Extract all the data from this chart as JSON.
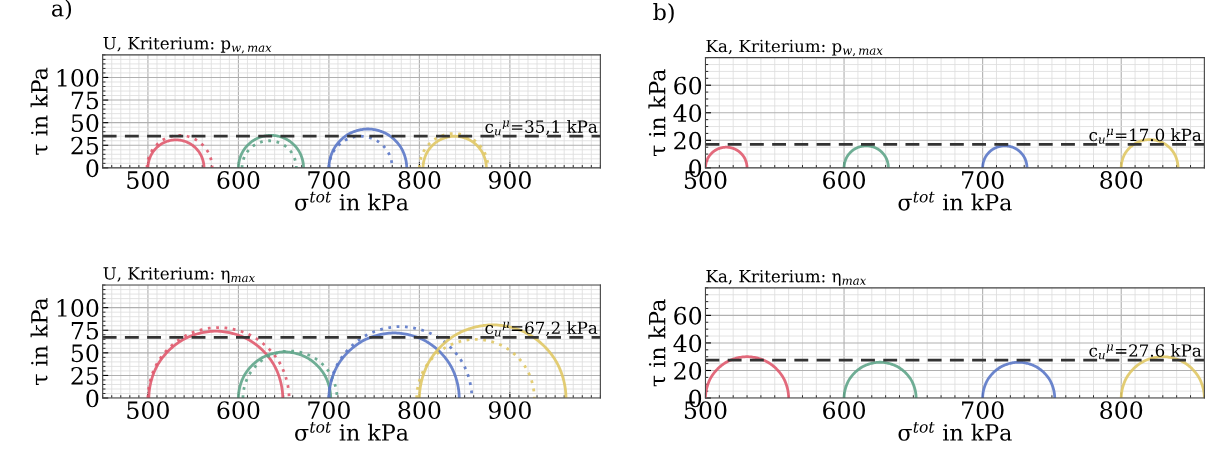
{
  "chart_data": [
    {
      "type": "line",
      "title": "U, Kriterium: p$_{w,max}$",
      "xlabel": "σ$^{tot}$ in kPa",
      "ylabel": "τ in kPa",
      "annotations": [
        "a)"
      ],
      "grid": true,
      "xlim": [
        450,
        1000
      ],
      "xticks": [
        500,
        600,
        700,
        800,
        900
      ],
      "ylim": [
        0,
        125
      ],
      "yticks": [
        0,
        25,
        50,
        75,
        100
      ],
      "ref_lines": [
        {
          "axis": "y",
          "value": 35.1,
          "label": "c$_{u}$$^{μ}$=35,1 kPa",
          "color": "#333333",
          "line_style": "dashed"
        }
      ],
      "series": [
        {
          "color": "#e05a6e",
          "line_style": "solid",
          "x": [
            500,
            504.2,
            515.5,
            531,
            546.5,
            557.8,
            562
          ],
          "values": [
            0,
            15.5,
            26.8,
            31,
            26.8,
            15.5,
            0
          ]
        },
        {
          "color": "#e05a6e",
          "line_style": "dotted",
          "x": [
            499,
            503.8,
            517,
            535,
            553,
            566.2,
            571
          ],
          "values": [
            0,
            18,
            31.2,
            36,
            31.2,
            18,
            0
          ]
        },
        {
          "color": "#5fa589",
          "line_style": "solid",
          "x": [
            600,
            604.8,
            618,
            636,
            654,
            667.2,
            672
          ],
          "values": [
            0,
            18,
            31.2,
            36,
            31.2,
            18,
            0
          ]
        },
        {
          "color": "#5fa589",
          "line_style": "dotted",
          "x": [
            604,
            608,
            619,
            634,
            649,
            660,
            664
          ],
          "values": [
            0,
            15,
            26,
            30,
            26,
            15,
            0
          ]
        },
        {
          "color": "#5b78c8",
          "line_style": "solid",
          "x": [
            700,
            705.8,
            721.5,
            743,
            764.5,
            780.2,
            786
          ],
          "values": [
            0,
            21.5,
            37.2,
            43,
            37.2,
            21.5,
            0
          ]
        },
        {
          "color": "#5b78c8",
          "line_style": "dotted",
          "x": [
            700,
            704.7,
            717.5,
            735,
            752.5,
            765.3,
            770
          ],
          "values": [
            0,
            17.5,
            30.3,
            35,
            30.3,
            17.5,
            0
          ]
        },
        {
          "color": "#e0c865",
          "line_style": "solid",
          "x": [
            804,
            808.7,
            821.5,
            839,
            856.5,
            869.3,
            874
          ],
          "values": [
            0,
            17.5,
            30.3,
            35,
            30.3,
            17.5,
            0
          ]
        },
        {
          "color": "#e0c865",
          "line_style": "dotted",
          "x": [
            800,
            805.1,
            819,
            838,
            857,
            870.9,
            876
          ],
          "values": [
            0,
            19,
            32.9,
            38,
            32.9,
            19,
            0
          ]
        }
      ]
    },
    {
      "type": "line",
      "title": "U, Kriterium: η$_{max}$",
      "xlabel": "σ$^{tot}$ in kPa",
      "ylabel": "τ in kPa",
      "grid": true,
      "xlim": [
        450,
        1000
      ],
      "xticks": [
        500,
        600,
        700,
        800,
        900
      ],
      "ylim": [
        0,
        125
      ],
      "yticks": [
        0,
        25,
        50,
        75,
        100
      ],
      "ref_lines": [
        {
          "axis": "y",
          "value": 67.2,
          "label": "c$_{u}$$^{μ}$=67,2 kPa",
          "color": "#333333",
          "line_style": "dashed"
        }
      ],
      "series": [
        {
          "color": "#e05a6e",
          "line_style": "solid",
          "x": [
            501,
            510.9,
            538,
            575,
            612,
            639.1,
            649
          ],
          "values": [
            0,
            37,
            64.1,
            74,
            64.1,
            37,
            0
          ]
        },
        {
          "color": "#e05a6e",
          "line_style": "dotted",
          "x": [
            500,
            510.5,
            539,
            578,
            617,
            645.5,
            656
          ],
          "values": [
            0,
            39,
            67.5,
            78,
            67.5,
            39,
            0
          ]
        },
        {
          "color": "#5fa589",
          "line_style": "solid",
          "x": [
            600,
            606.8,
            625.5,
            651,
            676.5,
            695.2,
            702
          ],
          "values": [
            0,
            25.5,
            44.2,
            51,
            44.2,
            25.5,
            0
          ]
        },
        {
          "color": "#5fa589",
          "line_style": "dotted",
          "x": [
            605,
            612,
            631,
            657,
            683,
            702,
            709
          ],
          "values": [
            0,
            26,
            45,
            52,
            45,
            26,
            0
          ]
        },
        {
          "color": "#5b78c8",
          "line_style": "solid",
          "x": [
            700,
            709.6,
            736,
            772,
            808,
            834.4,
            844
          ],
          "values": [
            0,
            36,
            62.4,
            72,
            62.4,
            36,
            0
          ]
        },
        {
          "color": "#5b78c8",
          "line_style": "dotted",
          "x": [
            700,
            710.6,
            739.5,
            779,
            818.5,
            847.4,
            858
          ],
          "values": [
            0,
            39.5,
            68.4,
            79,
            68.4,
            39.5,
            0
          ]
        },
        {
          "color": "#e0c865",
          "line_style": "solid",
          "x": [
            800,
            810.9,
            840.5,
            881,
            921.5,
            951.1,
            962
          ],
          "values": [
            0,
            40.5,
            70.1,
            81,
            70.1,
            40.5,
            0
          ]
        },
        {
          "color": "#e0c865",
          "line_style": "dotted",
          "x": [
            797,
            805.7,
            829.5,
            862,
            894.5,
            918.3,
            927
          ],
          "values": [
            0,
            32.5,
            56.3,
            65,
            56.3,
            32.5,
            0
          ]
        }
      ]
    },
    {
      "type": "line",
      "title": "Ka, Kriterium: p$_{w,max}$",
      "xlabel": "σ$^{tot}$ in kPa",
      "ylabel": "τ in kPa",
      "annotations": [
        "b)"
      ],
      "grid": true,
      "xlim": [
        500,
        860
      ],
      "xticks": [
        500,
        600,
        700,
        800
      ],
      "ylim": [
        0,
        80
      ],
      "yticks": [
        0,
        20,
        40,
        60
      ],
      "ref_lines": [
        {
          "axis": "y",
          "value": 17.0,
          "label": "c$_{u}$$^{μ}$=17.0 kPa",
          "color": "#333333",
          "line_style": "dashed"
        }
      ],
      "series": [
        {
          "color": "#e05a6e",
          "line_style": "solid",
          "x": [
            500,
            502,
            507.5,
            515,
            522.5,
            528,
            530
          ],
          "values": [
            0,
            7.5,
            13,
            15,
            13,
            7.5,
            0
          ]
        },
        {
          "color": "#5fa589",
          "line_style": "solid",
          "x": [
            600,
            602.1,
            608,
            616,
            624,
            629.9,
            632
          ],
          "values": [
            0,
            8,
            13.9,
            16,
            13.9,
            8,
            0
          ]
        },
        {
          "color": "#5b78c8",
          "line_style": "solid",
          "x": [
            700,
            702.1,
            708,
            716,
            724,
            729.9,
            732
          ],
          "values": [
            0,
            8,
            13.9,
            16,
            13.9,
            8,
            0
          ]
        },
        {
          "color": "#e0c865",
          "line_style": "solid",
          "x": [
            800,
            802.7,
            810.3,
            820.5,
            830.8,
            838.3,
            841
          ],
          "values": [
            0,
            10.3,
            17.8,
            20.5,
            17.8,
            10.3,
            0
          ]
        }
      ]
    },
    {
      "type": "line",
      "title": "Ka, Kriterium: η$_{max}$",
      "xlabel": "σ$^{tot}$ in kPa",
      "ylabel": "τ in kPa",
      "grid": true,
      "xlim": [
        500,
        860
      ],
      "xticks": [
        500,
        600,
        700,
        800
      ],
      "ylim": [
        0,
        80
      ],
      "yticks": [
        0,
        20,
        40,
        60
      ],
      "ref_lines": [
        {
          "axis": "y",
          "value": 27.6,
          "label": "c$_{u}$$^{μ}$=27.6 kPa",
          "color": "#333333",
          "line_style": "dashed"
        }
      ],
      "series": [
        {
          "color": "#e05a6e",
          "line_style": "solid",
          "x": [
            500,
            504,
            515,
            530,
            545,
            556,
            560
          ],
          "values": [
            0,
            15,
            26,
            30,
            26,
            15,
            0
          ]
        },
        {
          "color": "#5fa589",
          "line_style": "solid",
          "x": [
            600,
            603.5,
            613,
            626,
            639,
            648.5,
            652
          ],
          "values": [
            0,
            13,
            22.5,
            26,
            22.5,
            13,
            0
          ]
        },
        {
          "color": "#5b78c8",
          "line_style": "solid",
          "x": [
            700,
            703.5,
            713,
            726,
            739,
            748.5,
            752
          ],
          "values": [
            0,
            13,
            22.5,
            26,
            22.5,
            13,
            0
          ]
        },
        {
          "color": "#e0c865",
          "line_style": "solid",
          "x": [
            800,
            804,
            815,
            830,
            845,
            856,
            860
          ],
          "values": [
            0,
            15,
            26,
            30,
            26,
            15,
            0
          ]
        }
      ]
    }
  ]
}
